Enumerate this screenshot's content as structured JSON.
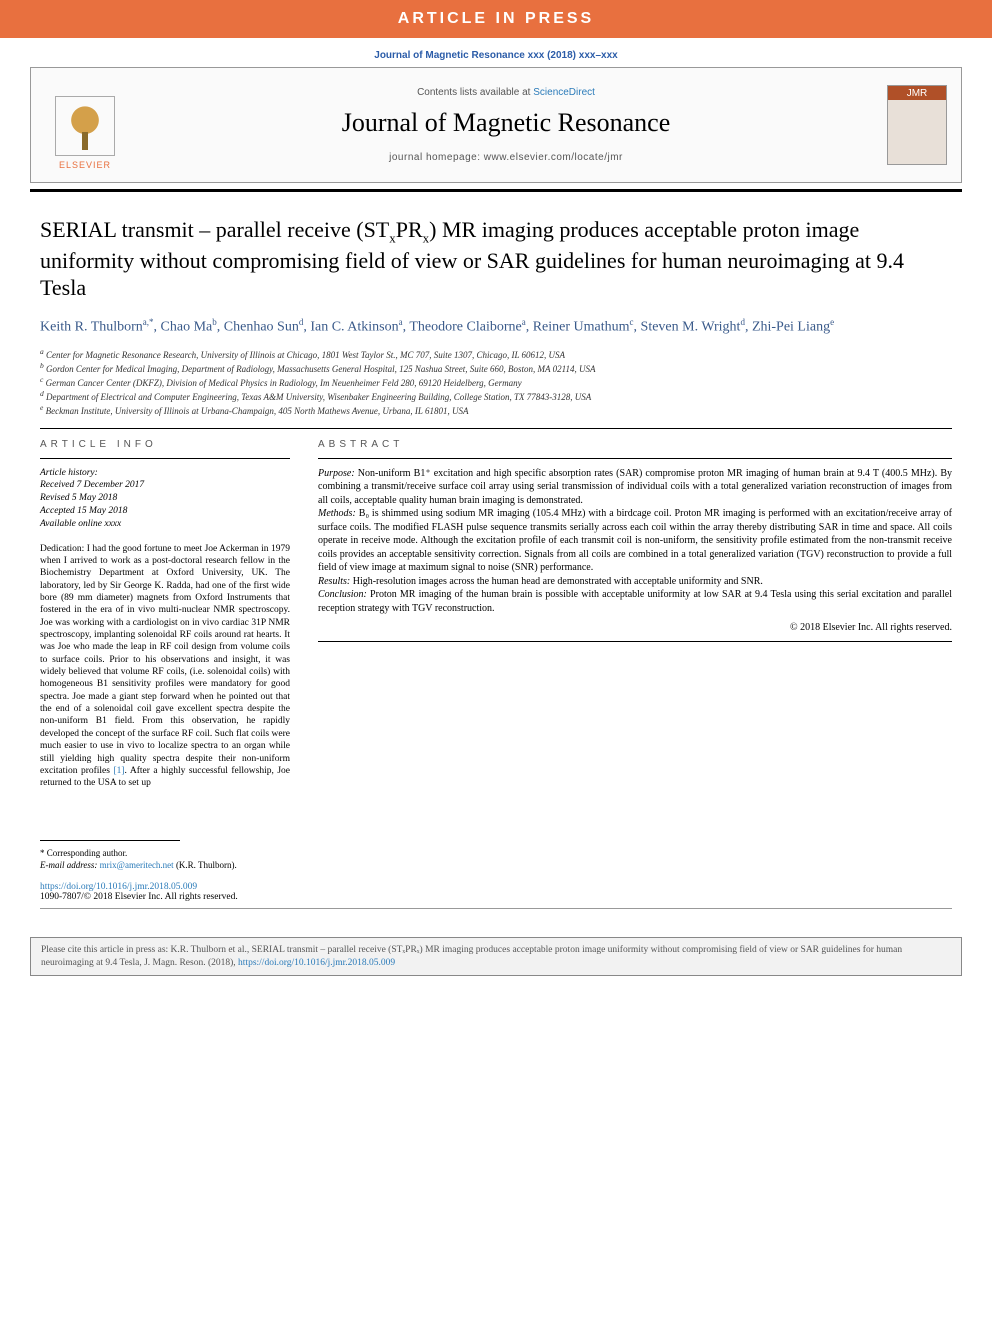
{
  "banner": "ARTICLE IN PRESS",
  "citation_top": "Journal of Magnetic Resonance xxx (2018) xxx–xxx",
  "header": {
    "contents_prefix": "Contents lists available at ",
    "contents_link": "ScienceDirect",
    "journal_name": "Journal of Magnetic Resonance",
    "homepage_prefix": "journal homepage: ",
    "homepage_url": "www.elsevier.com/locate/jmr",
    "publisher_label": "ELSEVIER",
    "cover_label": "JMR"
  },
  "title_pre": "SERIAL transmit – parallel receive (ST",
  "title_sub1": "x",
  "title_mid": "PR",
  "title_sub2": "x",
  "title_post": ") MR imaging produces acceptable proton image uniformity without compromising field of view or SAR guidelines for human neuroimaging at 9.4 Tesla",
  "authors_html": "Keith R. Thulborn|a,*|, Chao Ma|b|, Chenhao Sun|d|, Ian C. Atkinson|a|, Theodore Claiborne|a|, Reiner Umathum|c|, Steven M. Wright|d|, Zhi-Pei Liang|e|",
  "affiliations": {
    "a": "Center for Magnetic Resonance Research, University of Illinois at Chicago, 1801 West Taylor St., MC 707, Suite 1307, Chicago, IL 60612, USA",
    "b": "Gordon Center for Medical Imaging, Department of Radiology, Massachusetts General Hospital, 125 Nashua Street, Suite 660, Boston, MA 02114, USA",
    "c": "German Cancer Center (DKFZ), Division of Medical Physics in Radiology, Im Neuenheimer Feld 280, 69120 Heidelberg, Germany",
    "d": "Department of Electrical and Computer Engineering, Texas A&M University, Wisenbaker Engineering Building, College Station, TX 77843-3128, USA",
    "e": "Beckman Institute, University of Illinois at Urbana-Champaign, 405 North Mathews Avenue, Urbana, IL 61801, USA"
  },
  "article_info_head": "ARTICLE INFO",
  "history": {
    "label": "Article history:",
    "received": "Received 7 December 2017",
    "revised": "Revised 5 May 2018",
    "accepted": "Accepted 15 May 2018",
    "online": "Available online xxxx"
  },
  "dedication_pre": "Dedication: I had the good fortune to meet Joe Ackerman in 1979 when I arrived to work as a post-doctoral research fellow in the Biochemistry Department at Oxford University, UK. The laboratory, led by Sir George K. Radda, had one of the first wide bore (89 mm diameter) magnets from Oxford Instruments that fostered in the era of in vivo multi-nuclear NMR spectroscopy. Joe was working with a cardiologist on in vivo cardiac 31P NMR spectroscopy, implanting solenoidal RF coils around rat hearts. It was Joe who made the leap in RF coil design from volume coils to surface coils. Prior to his observations and insight, it was widely believed that volume RF coils, (i.e. solenoidal coils) with homogeneous B1 sensitivity profiles were mandatory for good spectra. Joe made a giant step forward when he pointed out that the end of a solenoidal coil gave excellent spectra despite the non-uniform B1 field. From this observation, he rapidly developed the concept of the surface RF coil. Such flat coils were much easier to use in vivo to localize spectra to an organ while still yielding high quality spectra despite their non-uniform excitation profiles ",
  "dedication_ref": "[1]",
  "dedication_post": ". After a highly successful fellowship, Joe returned to the USA to set up",
  "abstract_head": "ABSTRACT",
  "abstract": {
    "purpose": "Non-uniform B1⁺ excitation and high specific absorption rates (SAR) compromise proton MR imaging of human brain at 9.4 T (400.5 MHz). By combining a transmit/receive surface coil array using serial transmission of individual coils with a total generalized variation reconstruction of images from all coils, acceptable quality human brain imaging is demonstrated.",
    "methods": "B₀ is shimmed using sodium MR imaging (105.4 MHz) with a birdcage coil. Proton MR imaging is performed with an excitation/receive array of surface coils. The modified FLASH pulse sequence transmits serially across each coil within the array thereby distributing SAR in time and space. All coils operate in receive mode. Although the excitation profile of each transmit coil is non-uniform, the sensitivity profile estimated from the non-transmit receive coils provides an acceptable sensitivity correction. Signals from all coils are combined in a total generalized variation (TGV) reconstruction to provide a full field of view image at maximum signal to noise (SNR) performance.",
    "results": "High-resolution images across the human head are demonstrated with acceptable uniformity and SNR.",
    "conclusion": "Proton MR imaging of the human brain is possible with acceptable uniformity at low SAR at 9.4 Tesla using this serial excitation and parallel reception strategy with TGV reconstruction.",
    "copyright": "© 2018 Elsevier Inc. All rights reserved."
  },
  "corresp": {
    "star": "* Corresponding author.",
    "email_label": "E-mail address: ",
    "email": "mrix@ameritech.net",
    "email_name": " (K.R. Thulborn)."
  },
  "doi": {
    "url": "https://doi.org/10.1016/j.jmr.2018.05.009",
    "issn_line": "1090-7807/© 2018 Elsevier Inc. All rights reserved."
  },
  "cite_box": {
    "text_pre": "Please cite this article in press as: K.R. Thulborn et al., SERIAL transmit – parallel receive (STₓPRₓ) MR imaging produces acceptable proton image uniformity without compromising field of view or SAR guidelines for human neuroimaging at 9.4 Tesla, J. Magn. Reson. (2018), ",
    "link": "https://doi.org/10.1016/j.jmr.2018.05.009"
  },
  "colors": {
    "banner_bg": "#e8703f",
    "link": "#2b7bb9",
    "author": "#3a5a8a"
  }
}
